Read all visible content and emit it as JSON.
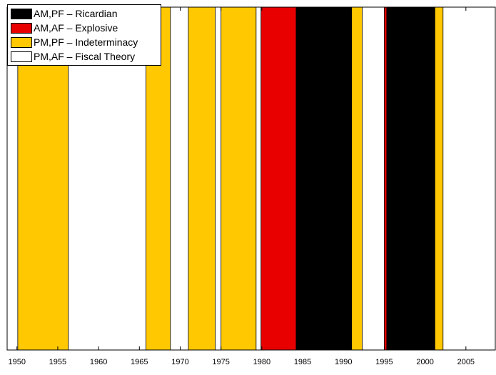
{
  "chart_data": {
    "type": "area",
    "title": "",
    "xlabel": "",
    "ylabel": "",
    "xlim": [
      1948.8,
      2008.6
    ],
    "x_ticks": [
      1950,
      1955,
      1960,
      1965,
      1970,
      1975,
      1980,
      1985,
      1990,
      1995,
      2000,
      2005
    ],
    "x_tick_labels": [
      "1950",
      "1955",
      "1960",
      "1965",
      "1970",
      "1975",
      "1980",
      "1985",
      "1990",
      "1995",
      "2000",
      "2005"
    ],
    "regimes": [
      {
        "key": "AM_PF",
        "label": "AM,PF – Ricardian",
        "color": "#000000"
      },
      {
        "key": "AM_AF",
        "label": "AM,AF – Explosive",
        "color": "#e80000"
      },
      {
        "key": "PM_PF",
        "label": "PM,PF – Indeterminacy",
        "color": "#ffc800"
      },
      {
        "key": "PM_AF",
        "label": "PM,AF – Fiscal Theory",
        "color": "#ffffff"
      }
    ],
    "periods": [
      {
        "start": 1950.1,
        "end": 1956.3,
        "regime": "PM_PF"
      },
      {
        "start": 1965.8,
        "end": 1968.8,
        "regime": "PM_PF"
      },
      {
        "start": 1971.0,
        "end": 1974.3,
        "regime": "PM_PF"
      },
      {
        "start": 1975.0,
        "end": 1979.3,
        "regime": "PM_PF"
      },
      {
        "start": 1979.9,
        "end": 1984.2,
        "regime": "AM_AF"
      },
      {
        "start": 1984.2,
        "end": 1991.0,
        "regime": "AM_PF"
      },
      {
        "start": 1991.0,
        "end": 1992.3,
        "regime": "PM_PF"
      },
      {
        "start": 1995.0,
        "end": 1995.3,
        "regime": "AM_AF"
      },
      {
        "start": 1995.3,
        "end": 2001.2,
        "regime": "AM_PF"
      },
      {
        "start": 2001.2,
        "end": 2002.2,
        "regime": "PM_PF"
      }
    ],
    "legend_position": "top-left",
    "grid": false
  }
}
